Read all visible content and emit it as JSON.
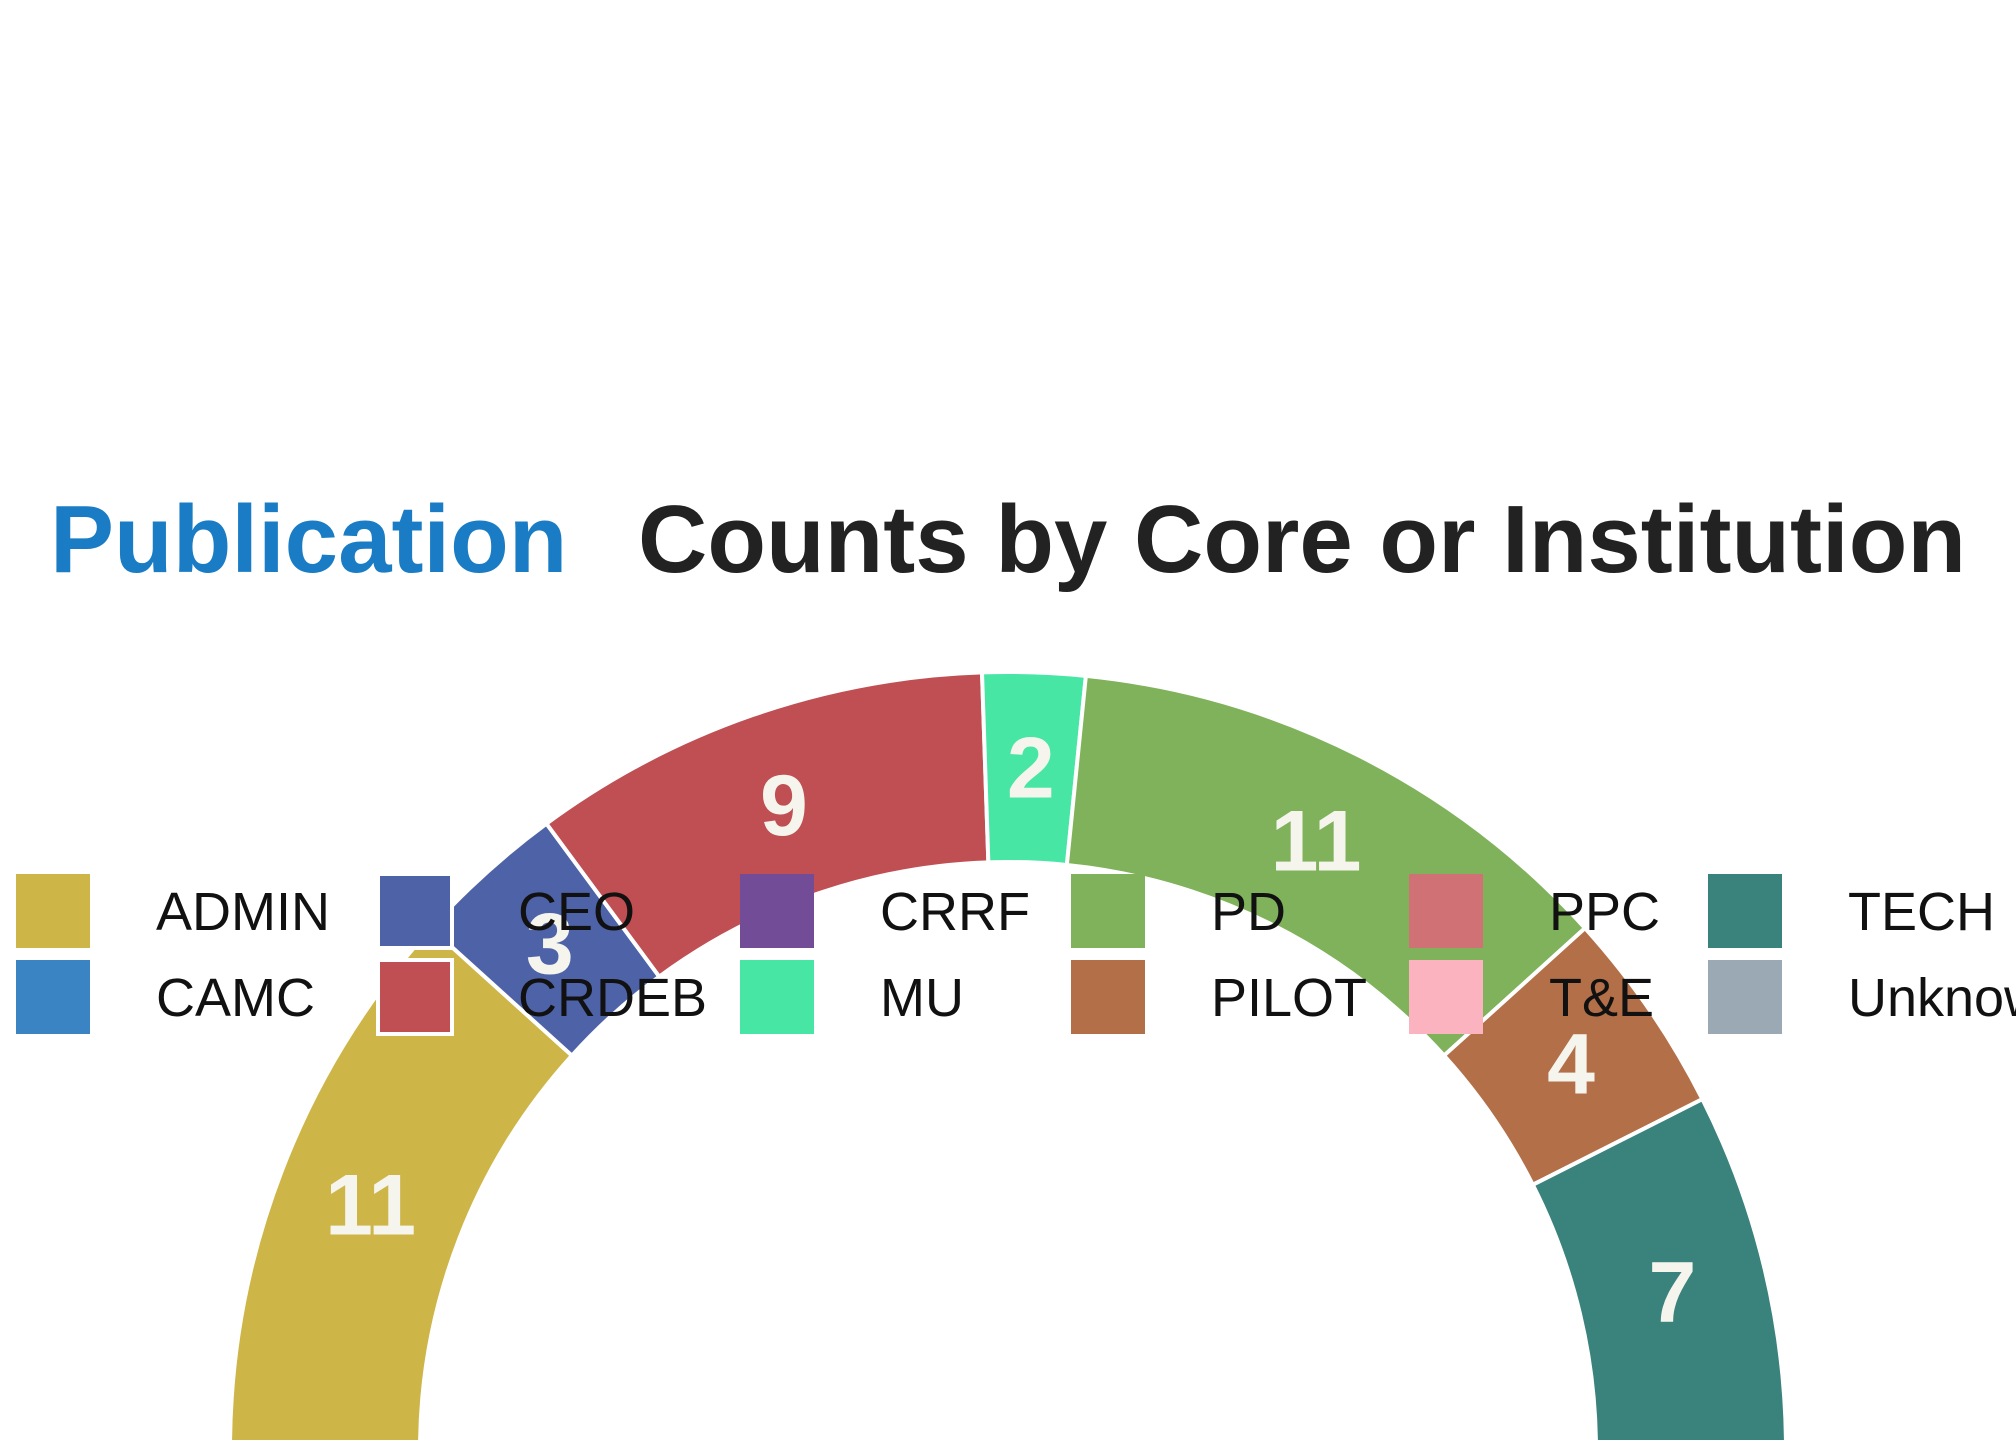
{
  "chart_data": {
    "type": "pie",
    "subtype": "semicircle-donut",
    "title": {
      "highlight": "Publication",
      "rest": "Counts by Core or Institution",
      "highlight_color": "#1a7cc4",
      "rest_color": "#222222"
    },
    "slices": [
      {
        "label": "ADMIN",
        "value": 11,
        "color": "#cdb548"
      },
      {
        "label": "CAMC",
        "value": 0,
        "color": "#3b84c4"
      },
      {
        "label": "CEO",
        "value": 3,
        "color": "#4e62a8"
      },
      {
        "label": "CRDEB",
        "value": 9,
        "color": "#bf4f53"
      },
      {
        "label": "CRRF",
        "value": 0,
        "color": "#734c98"
      },
      {
        "label": "MU",
        "value": 2,
        "color": "#48e6a4"
      },
      {
        "label": "PD",
        "value": 11,
        "color": "#7fb25b"
      },
      {
        "label": "PILOT",
        "value": 4,
        "color": "#b36f48"
      },
      {
        "label": "PPC",
        "value": 0,
        "color": "#d07176"
      },
      {
        "label": "T&E",
        "value": 0,
        "color": "#fbb3c0"
      },
      {
        "label": "TECH",
        "value": 7,
        "color": "#3a827c"
      },
      {
        "label": "Unknown",
        "value": 0,
        "color": "#9aa9b3"
      }
    ],
    "legend": {
      "placement": "top",
      "rows": [
        [
          "ADMIN",
          "CEO",
          "CRRF",
          "PD",
          "PPC",
          "TECH"
        ],
        [
          "CAMC",
          "CRDEB",
          "MU",
          "PILOT",
          "T&E",
          "Unknown"
        ]
      ]
    },
    "data_labels": true,
    "label_color": "#f5f5ee"
  }
}
